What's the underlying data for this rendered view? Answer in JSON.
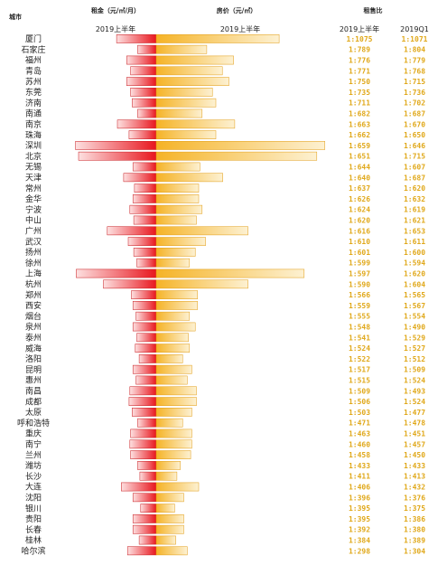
{
  "chart_data": {
    "type": "bar",
    "headers": {
      "city": "城市",
      "rent": "租金（元/㎡/月）",
      "price": "房价（元/㎡）",
      "ratio": "租售比"
    },
    "periods": {
      "rent": "2019上半年",
      "price": "2019上半年",
      "ratio_h1": "2019上半年",
      "ratio_q1": "2019Q1"
    },
    "colors": {
      "rent": "#e8161e",
      "price": "#f5b326",
      "ratio_text": "#e0a81a"
    },
    "rows": [
      {
        "city": "厦门",
        "rent": 51,
        "price": 53600,
        "ratio_h1": "1:1075",
        "ratio_q1": "1:1071"
      },
      {
        "city": "石家庄",
        "rent": 24,
        "price": 22000,
        "ratio_h1": "1:789",
        "ratio_q1": "1:804"
      },
      {
        "city": "福州",
        "rent": 38,
        "price": 33700,
        "ratio_h1": "1:776",
        "ratio_q1": "1:779"
      },
      {
        "city": "青岛",
        "rent": 33,
        "price": 28800,
        "ratio_h1": "1:771",
        "ratio_q1": "1:768"
      },
      {
        "city": "苏州",
        "rent": 38,
        "price": 31700,
        "ratio_h1": "1:750",
        "ratio_q1": "1:715"
      },
      {
        "city": "东莞",
        "rent": 33,
        "price": 24500,
        "ratio_h1": "1:735",
        "ratio_q1": "1:736"
      },
      {
        "city": "济南",
        "rent": 31,
        "price": 26000,
        "ratio_h1": "1:711",
        "ratio_q1": "1:702"
      },
      {
        "city": "南通",
        "rent": 24,
        "price": 20000,
        "ratio_h1": "1:682",
        "ratio_q1": "1:687"
      },
      {
        "city": "南京",
        "rent": 50,
        "price": 34200,
        "ratio_h1": "1:663",
        "ratio_q1": "1:670"
      },
      {
        "city": "珠海",
        "rent": 35,
        "price": 26000,
        "ratio_h1": "1:662",
        "ratio_q1": "1:650"
      },
      {
        "city": "深圳",
        "rent": 104,
        "price": 73500,
        "ratio_h1": "1:659",
        "ratio_q1": "1:646"
      },
      {
        "city": "北京",
        "rent": 100,
        "price": 70000,
        "ratio_h1": "1:651",
        "ratio_q1": "1:715"
      },
      {
        "city": "无锡",
        "rent": 30,
        "price": 19000,
        "ratio_h1": "1:644",
        "ratio_q1": "1:607"
      },
      {
        "city": "天津",
        "rent": 42,
        "price": 29000,
        "ratio_h1": "1:640",
        "ratio_q1": "1:687"
      },
      {
        "city": "常州",
        "rent": 28,
        "price": 18500,
        "ratio_h1": "1:637",
        "ratio_q1": "1:620"
      },
      {
        "city": "金华",
        "rent": 30,
        "price": 18500,
        "ratio_h1": "1:626",
        "ratio_q1": "1:632"
      },
      {
        "city": "宁波",
        "rent": 34,
        "price": 20000,
        "ratio_h1": "1:624",
        "ratio_q1": "1:619"
      },
      {
        "city": "中山",
        "rent": 29,
        "price": 17500,
        "ratio_h1": "1:620",
        "ratio_q1": "1:621"
      },
      {
        "city": "广州",
        "rent": 63,
        "price": 40000,
        "ratio_h1": "1:616",
        "ratio_q1": "1:653"
      },
      {
        "city": "武汉",
        "rent": 36,
        "price": 21500,
        "ratio_h1": "1:610",
        "ratio_q1": "1:611"
      },
      {
        "city": "扬州",
        "rent": 29,
        "price": 17000,
        "ratio_h1": "1:601",
        "ratio_q1": "1:600"
      },
      {
        "city": "徐州",
        "rent": 25,
        "price": 14500,
        "ratio_h1": "1:599",
        "ratio_q1": "1:594"
      },
      {
        "city": "上海",
        "rent": 103,
        "price": 64500,
        "ratio_h1": "1:597",
        "ratio_q1": "1:620"
      },
      {
        "city": "杭州",
        "rent": 68,
        "price": 40000,
        "ratio_h1": "1:590",
        "ratio_q1": "1:604"
      },
      {
        "city": "郑州",
        "rent": 32,
        "price": 18000,
        "ratio_h1": "1:566",
        "ratio_q1": "1:565"
      },
      {
        "city": "西安",
        "rent": 30,
        "price": 18000,
        "ratio_h1": "1:559",
        "ratio_q1": "1:567"
      },
      {
        "city": "烟台",
        "rent": 26,
        "price": 14500,
        "ratio_h1": "1:555",
        "ratio_q1": "1:554"
      },
      {
        "city": "泉州",
        "rent": 30,
        "price": 17000,
        "ratio_h1": "1:548",
        "ratio_q1": "1:490"
      },
      {
        "city": "泰州",
        "rent": 25,
        "price": 14000,
        "ratio_h1": "1:541",
        "ratio_q1": "1:529"
      },
      {
        "city": "威海",
        "rent": 27,
        "price": 14500,
        "ratio_h1": "1:524",
        "ratio_q1": "1:527"
      },
      {
        "city": "洛阳",
        "rent": 22,
        "price": 11500,
        "ratio_h1": "1:522",
        "ratio_q1": "1:512"
      },
      {
        "city": "昆明",
        "rent": 30,
        "price": 15500,
        "ratio_h1": "1:517",
        "ratio_q1": "1:509"
      },
      {
        "city": "惠州",
        "rent": 26,
        "price": 13500,
        "ratio_h1": "1:515",
        "ratio_q1": "1:524"
      },
      {
        "city": "南昌",
        "rent": 34,
        "price": 17500,
        "ratio_h1": "1:509",
        "ratio_q1": "1:493"
      },
      {
        "city": "成都",
        "rent": 35,
        "price": 17500,
        "ratio_h1": "1:506",
        "ratio_q1": "1:524"
      },
      {
        "city": "太原",
        "rent": 31,
        "price": 15500,
        "ratio_h1": "1:503",
        "ratio_q1": "1:477"
      },
      {
        "city": "呼和浩特",
        "rent": 24,
        "price": 11500,
        "ratio_h1": "1:471",
        "ratio_q1": "1:478"
      },
      {
        "city": "重庆",
        "rent": 33,
        "price": 15500,
        "ratio_h1": "1:463",
        "ratio_q1": "1:451"
      },
      {
        "city": "南宁",
        "rent": 34,
        "price": 15500,
        "ratio_h1": "1:460",
        "ratio_q1": "1:457"
      },
      {
        "city": "兰州",
        "rent": 33,
        "price": 15000,
        "ratio_h1": "1:458",
        "ratio_q1": "1:450"
      },
      {
        "city": "潍坊",
        "rent": 24,
        "price": 10500,
        "ratio_h1": "1:433",
        "ratio_q1": "1:433"
      },
      {
        "city": "长沙",
        "rent": 21,
        "price": 9000,
        "ratio_h1": "1:411",
        "ratio_q1": "1:413"
      },
      {
        "city": "大连",
        "rent": 45,
        "price": 18500,
        "ratio_h1": "1:406",
        "ratio_q1": "1:432"
      },
      {
        "city": "沈阳",
        "rent": 30,
        "price": 12000,
        "ratio_h1": "1:396",
        "ratio_q1": "1:376"
      },
      {
        "city": "银川",
        "rent": 20,
        "price": 8000,
        "ratio_h1": "1:395",
        "ratio_q1": "1:375"
      },
      {
        "city": "贵阳",
        "rent": 30,
        "price": 12000,
        "ratio_h1": "1:395",
        "ratio_q1": "1:386"
      },
      {
        "city": "长春",
        "rent": 30,
        "price": 12000,
        "ratio_h1": "1:392",
        "ratio_q1": "1:380"
      },
      {
        "city": "桂林",
        "rent": 22,
        "price": 8500,
        "ratio_h1": "1:384",
        "ratio_q1": "1:389"
      },
      {
        "city": "哈尔滨",
        "rent": 37,
        "price": 13500,
        "ratio_h1": "1:298",
        "ratio_q1": "1:304"
      }
    ]
  }
}
